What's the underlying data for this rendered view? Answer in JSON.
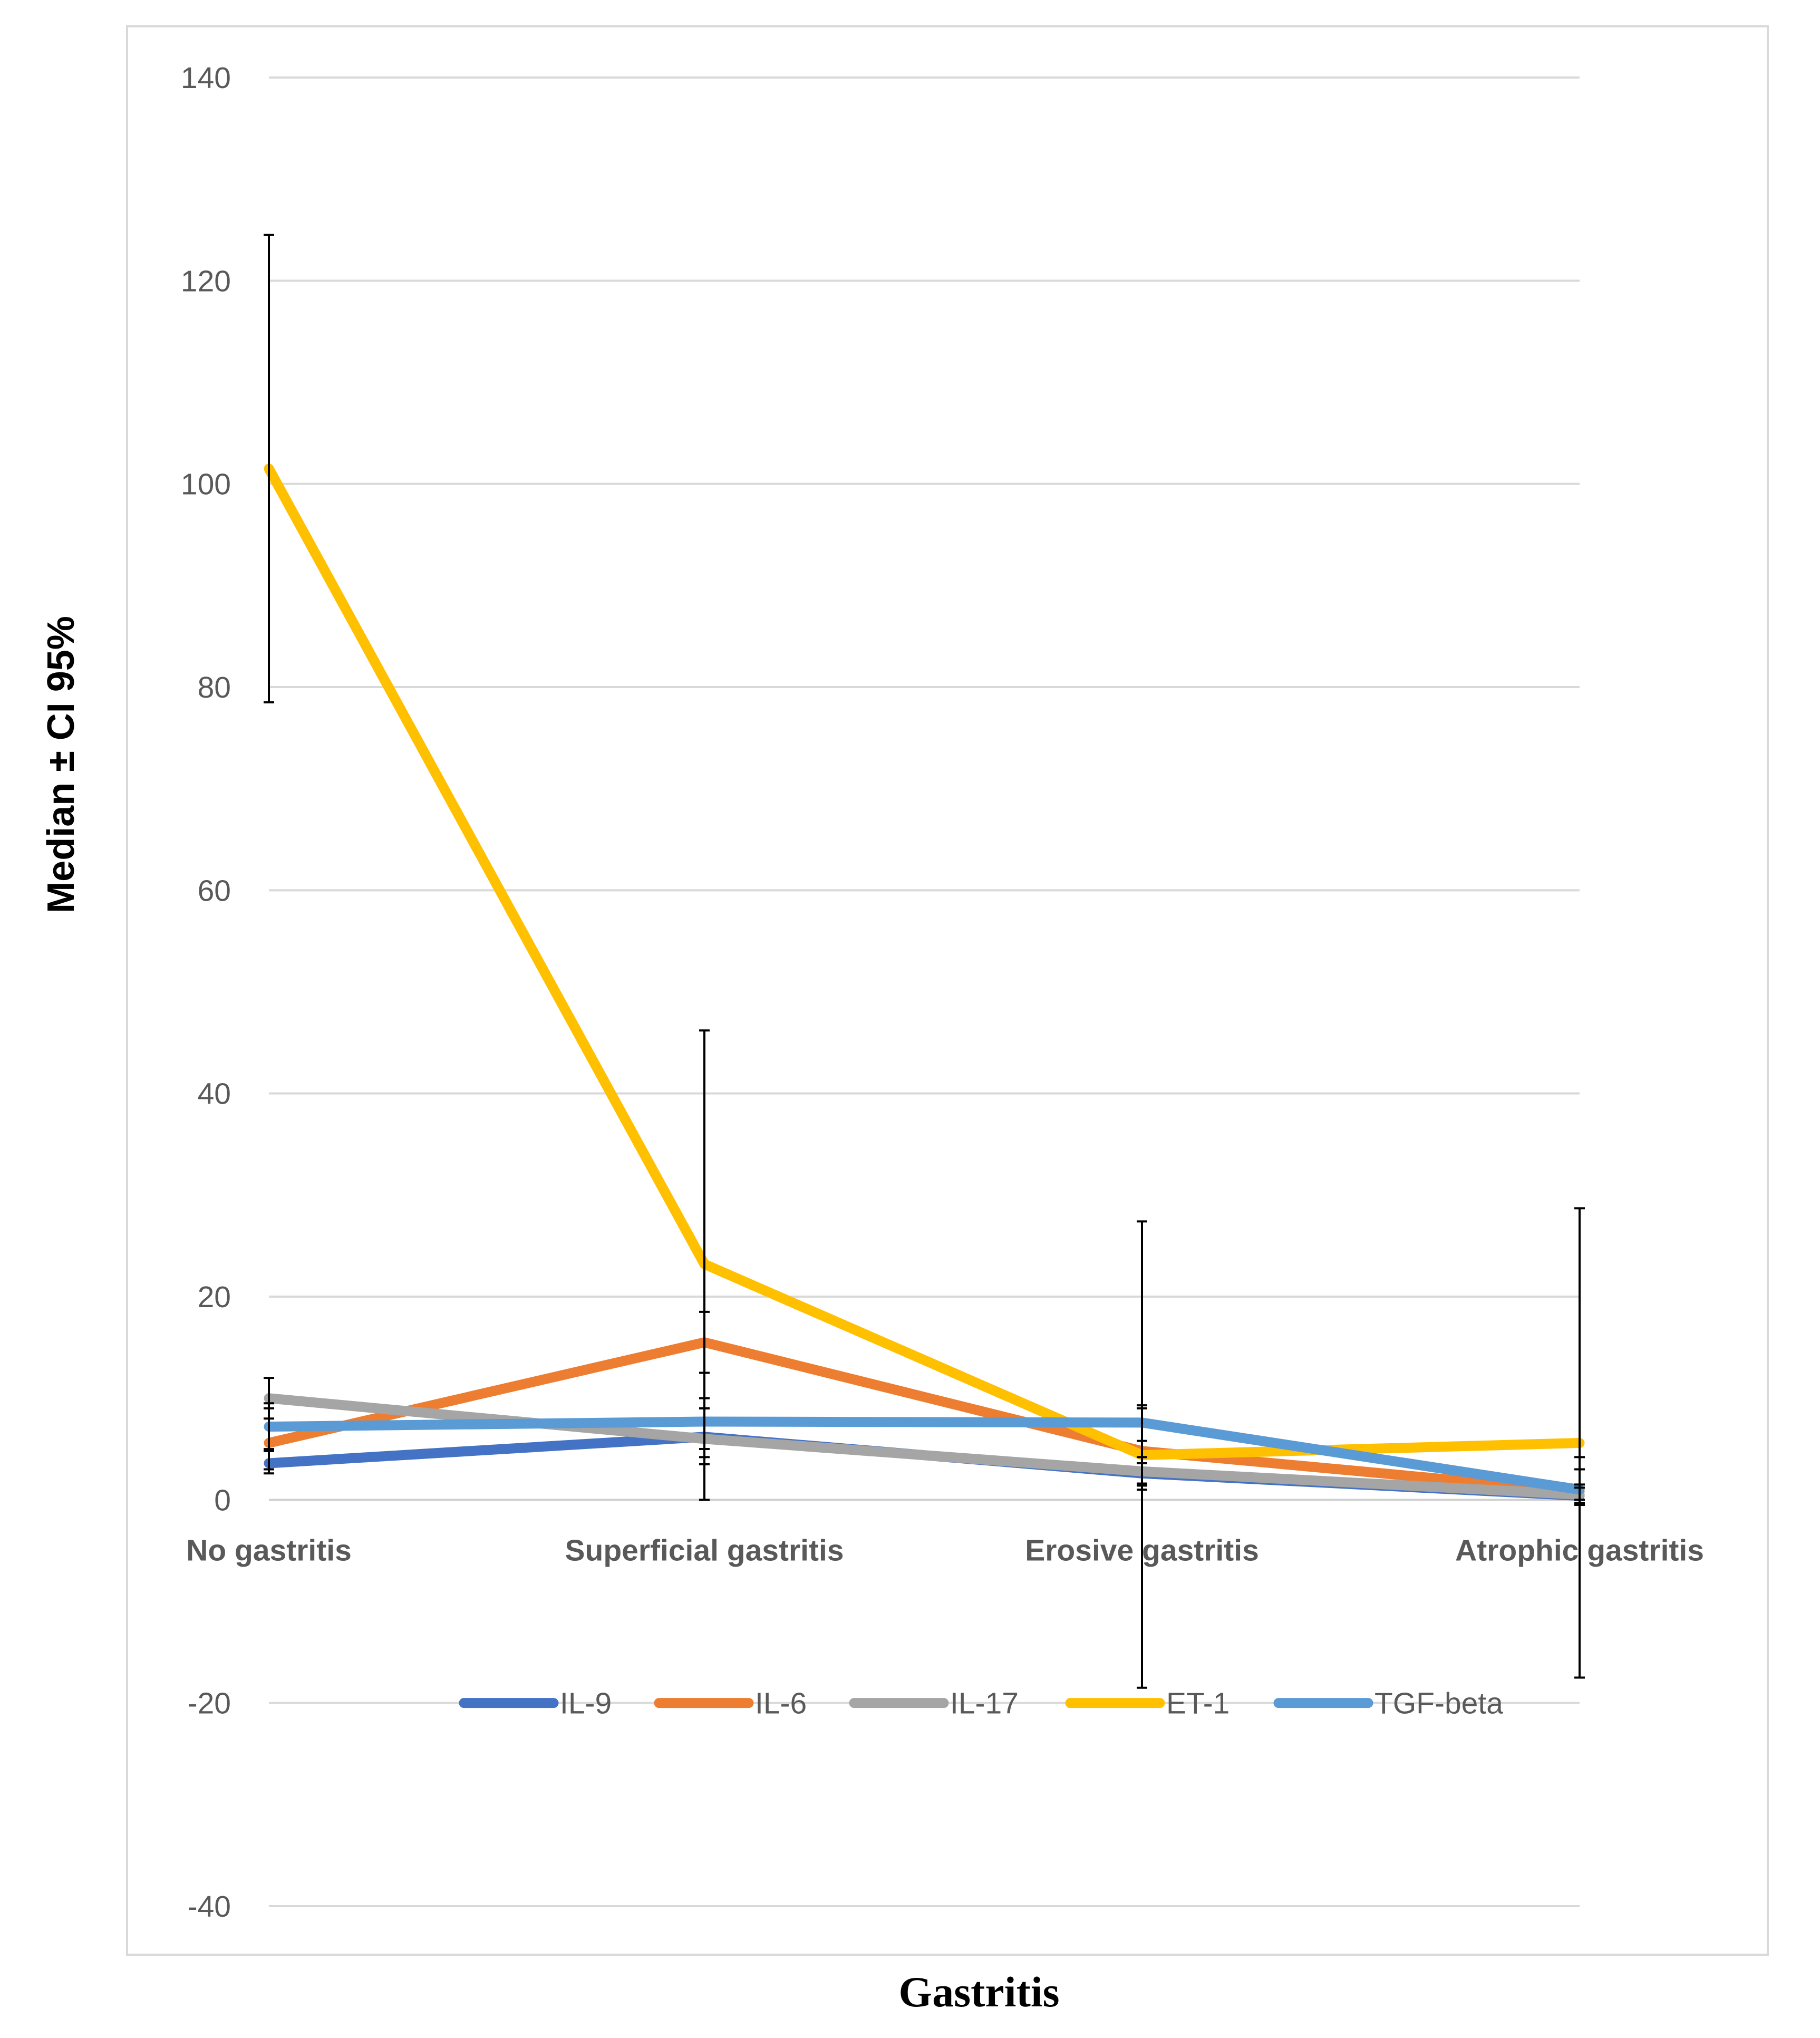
{
  "chart_data": {
    "type": "line",
    "xlabel": "Gastritis",
    "ylabel": "Median ± CI 95%",
    "ylim": [
      -40,
      140
    ],
    "yticks": [
      -40,
      -20,
      0,
      20,
      40,
      60,
      80,
      100,
      120,
      140
    ],
    "ytick_labels": [
      "-40",
      "-20",
      "0",
      "20",
      "40",
      "60",
      "80",
      "100",
      "120",
      "140"
    ],
    "grid": true,
    "legend_position": "bottom-inside",
    "categories": [
      "No gastritis",
      "Superficial gastritis",
      "Erosive gastritis",
      "Atrophic gastritis"
    ],
    "series": [
      {
        "name": "IL-9",
        "color": "#4472C4",
        "values": [
          3.6,
          6.2,
          2.6,
          0.4
        ],
        "ci_low": [
          2.6,
          4.2,
          1.6,
          0.0
        ],
        "ci_high": [
          4.8,
          9.0,
          3.6,
          1.2
        ]
      },
      {
        "name": "IL-6",
        "color": "#ED7D31",
        "values": [
          5.6,
          15.5,
          4.8,
          0.8
        ],
        "ci_low": [
          3.0,
          12.5,
          1.0,
          -0.5
        ],
        "ci_high": [
          9.0,
          18.5,
          9.0,
          3.0
        ]
      },
      {
        "name": "IL-17",
        "color": "#A5A5A5",
        "values": [
          10.0,
          6.0,
          2.8,
          0.5
        ],
        "ci_low": [
          8.0,
          3.5,
          1.4,
          -0.3
        ],
        "ci_high": [
          12.0,
          9.0,
          4.2,
          1.5
        ]
      },
      {
        "name": "ET-1",
        "color": "#FFC000",
        "values": [
          101.5,
          23.2,
          4.4,
          5.6
        ],
        "ci_low": [
          78.5,
          0.0,
          -18.5,
          -17.5
        ],
        "ci_high": [
          124.5,
          46.2,
          27.4,
          28.7
        ]
      },
      {
        "name": "TGF-beta",
        "color": "#5B9BD5",
        "values": [
          7.2,
          7.7,
          7.6,
          1.0
        ],
        "ci_low": [
          5.0,
          5.0,
          5.8,
          -0.3
        ],
        "ci_high": [
          9.5,
          10.0,
          9.3,
          4.2
        ]
      }
    ]
  }
}
